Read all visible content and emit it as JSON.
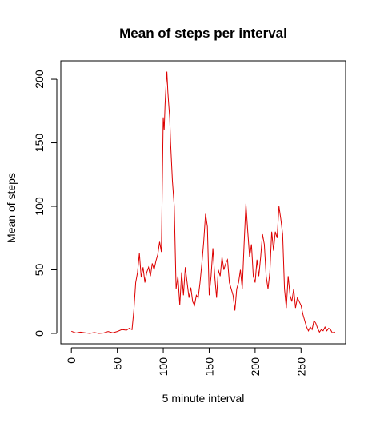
{
  "chart_data": {
    "type": "line",
    "title": "Mean of steps per interval",
    "xlabel": "5 minute interval",
    "ylabel": "Mean of steps",
    "xlim": [
      -11.5,
      298.5
    ],
    "ylim": [
      -8.2,
      214.5
    ],
    "xticks": [
      0,
      50,
      100,
      150,
      200,
      250
    ],
    "yticks": [
      0,
      50,
      100,
      150,
      200
    ],
    "grid": false,
    "legend": "none",
    "series": [
      {
        "color": "#dd0000",
        "x": [
          0,
          5,
          10,
          15,
          20,
          25,
          30,
          35,
          40,
          45,
          50,
          55,
          60,
          63,
          66,
          68,
          70,
          72,
          74,
          76,
          78,
          80,
          82,
          84,
          86,
          88,
          90,
          92,
          94,
          96,
          98,
          100,
          101,
          102,
          103,
          104,
          105,
          106,
          107,
          108,
          110,
          112,
          114,
          116,
          118,
          120,
          122,
          124,
          126,
          128,
          130,
          132,
          134,
          136,
          138,
          140,
          142,
          144,
          146,
          148,
          150,
          152,
          154,
          156,
          158,
          160,
          162,
          164,
          166,
          168,
          170,
          172,
          174,
          176,
          178,
          180,
          182,
          184,
          186,
          188,
          190,
          192,
          194,
          196,
          198,
          200,
          202,
          204,
          206,
          208,
          210,
          212,
          214,
          216,
          218,
          220,
          222,
          224,
          226,
          228,
          230,
          232,
          234,
          236,
          238,
          240,
          242,
          244,
          246,
          248,
          250,
          252,
          254,
          256,
          258,
          260,
          262,
          264,
          266,
          268,
          270,
          272,
          274,
          276,
          278,
          280,
          282,
          284,
          287
        ],
        "y": [
          1.7,
          0.3,
          1.0,
          0.5,
          0,
          0.7,
          0,
          0.3,
          1.5,
          0.5,
          1.5,
          3.0,
          2.5,
          4.0,
          3.0,
          18.0,
          40.0,
          48.0,
          63.0,
          44.0,
          52.0,
          40.0,
          48.0,
          52.0,
          45.0,
          55.0,
          50.0,
          57.0,
          62.0,
          72.0,
          64.0,
          170.0,
          160.0,
          180.0,
          195.0,
          206.0,
          190.0,
          180.0,
          170.0,
          150.0,
          120.0,
          100.0,
          35.0,
          45.0,
          22.0,
          48.0,
          30.0,
          52.0,
          40.0,
          28.0,
          36.0,
          25.0,
          22.0,
          30.0,
          28.0,
          40.0,
          55.0,
          72.0,
          94.0,
          84.0,
          30.0,
          45.0,
          67.0,
          45.0,
          28.0,
          50.0,
          45.0,
          60.0,
          50.0,
          55.0,
          58.0,
          40.0,
          35.0,
          30.0,
          18.0,
          35.0,
          40.0,
          50.0,
          35.0,
          70.0,
          102.0,
          80.0,
          60.0,
          70.0,
          45.0,
          40.0,
          58.0,
          45.0,
          60.0,
          78.0,
          70.0,
          45.0,
          35.0,
          48.0,
          80.0,
          65.0,
          80.0,
          75.0,
          100.0,
          90.0,
          78.0,
          35.0,
          20.0,
          45.0,
          30.0,
          25.0,
          35.0,
          20.0,
          28.0,
          25.0,
          22.0,
          15.0,
          10.0,
          5.0,
          2.0,
          5.0,
          3.0,
          10.0,
          8.0,
          4.0,
          1.0,
          3.0,
          2.0,
          5.0,
          2.0,
          4.0,
          3.0,
          0.5,
          1.0
        ]
      }
    ]
  }
}
